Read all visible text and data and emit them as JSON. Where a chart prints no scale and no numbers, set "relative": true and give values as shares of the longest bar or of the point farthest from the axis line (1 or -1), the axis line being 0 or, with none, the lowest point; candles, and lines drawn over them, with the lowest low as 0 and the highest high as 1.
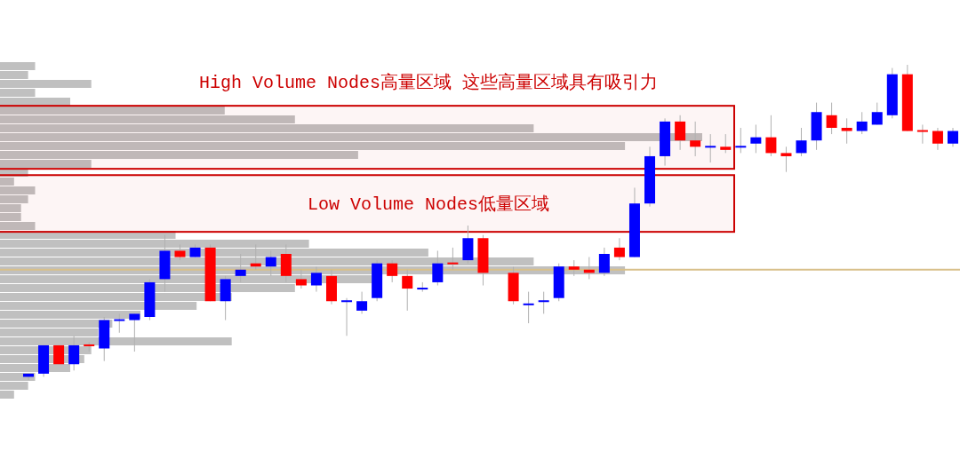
{
  "chart_data": [
    {
      "type": "bar",
      "orientation": "horizontal",
      "relative": true,
      "color": "#c0c0c0",
      "categories": [
        null,
        null,
        null,
        null,
        null,
        null,
        null,
        null,
        null,
        null,
        null,
        null,
        null,
        null,
        null,
        null,
        null,
        null,
        null,
        null,
        null,
        null,
        null,
        null,
        null,
        null,
        null,
        null,
        null,
        null,
        null,
        null,
        null,
        null,
        null,
        null,
        null,
        null
      ],
      "values": [
        0.05,
        0.04,
        0.13,
        0.05,
        0.1,
        0.32,
        0.42,
        0.76,
        1,
        0.89,
        0.51,
        0.13,
        0.04,
        0.02,
        0.05,
        0.04,
        0.03,
        0.03,
        0.05,
        0.25,
        0.44,
        0.61,
        0.76,
        0.89,
        0.53,
        0.42,
        0.33,
        0.28,
        0.2,
        0.16,
        0.14,
        0.33,
        0.13,
        0.12,
        0.1,
        0.05,
        0.04,
        0.02
      ]
    },
    {
      "type": "candlestick",
      "relative": true,
      "categories": [
        null,
        null,
        null,
        null,
        null,
        null,
        null,
        null,
        null,
        null,
        null,
        null,
        null,
        null,
        null,
        null,
        null,
        null,
        null,
        null,
        null,
        null,
        null,
        null,
        null,
        null,
        null,
        null,
        null,
        null,
        null,
        null,
        null,
        null,
        null,
        null,
        null,
        null,
        null,
        null,
        null,
        null,
        null,
        null,
        null,
        null,
        null,
        null,
        null,
        null,
        null,
        null,
        null,
        null,
        null,
        null,
        null,
        null,
        null,
        null,
        null,
        null
      ],
      "ohlc": [
        [
          0.01,
          0.02,
          0,
          0.02
        ],
        [
          0.02,
          0.11,
          0.01,
          0.11
        ],
        [
          0.11,
          0.11,
          0.05,
          0.05
        ],
        [
          0.05,
          0.14,
          0.03,
          0.11
        ],
        [
          0.11,
          0.12,
          0.09,
          0.11
        ],
        [
          0.1,
          0.2,
          0.06,
          0.19
        ],
        [
          0.19,
          0.21,
          0.15,
          0.19
        ],
        [
          0.19,
          0.21,
          0.09,
          0.21
        ],
        [
          0.2,
          0.32,
          0.19,
          0.31
        ],
        [
          0.32,
          0.46,
          0.28,
          0.41
        ],
        [
          0.41,
          0.43,
          0.38,
          0.39
        ],
        [
          0.39,
          0.43,
          0.39,
          0.42
        ],
        [
          0.42,
          0.43,
          0.25,
          0.25
        ],
        [
          0.25,
          0.33,
          0.19,
          0.32
        ],
        [
          0.33,
          0.4,
          0.31,
          0.35
        ],
        [
          0.37,
          0.43,
          0.35,
          0.36
        ],
        [
          0.36,
          0.41,
          0.33,
          0.39
        ],
        [
          0.4,
          0.43,
          0.31,
          0.33
        ],
        [
          0.32,
          0.35,
          0.29,
          0.3
        ],
        [
          0.3,
          0.36,
          0.28,
          0.34
        ],
        [
          0.33,
          0.35,
          0.24,
          0.25
        ],
        [
          0.25,
          0.26,
          0.14,
          0.25
        ],
        [
          0.22,
          0.28,
          0.21,
          0.25
        ],
        [
          0.26,
          0.38,
          0.25,
          0.37
        ],
        [
          0.37,
          0.38,
          0.31,
          0.33
        ],
        [
          0.33,
          0.35,
          0.22,
          0.29
        ],
        [
          0.29,
          0.31,
          0.28,
          0.29
        ],
        [
          0.31,
          0.41,
          0.3,
          0.37
        ],
        [
          0.37,
          0.42,
          0.35,
          0.37
        ],
        [
          0.38,
          0.49,
          0.37,
          0.45
        ],
        [
          0.45,
          0.46,
          0.3,
          0.34
        ],
        null,
        [
          0.34,
          0.36,
          0.24,
          0.25
        ],
        [
          0.24,
          0.28,
          0.18,
          0.24
        ],
        [
          0.25,
          0.28,
          0.21,
          0.25
        ],
        [
          0.26,
          0.37,
          0.25,
          0.36
        ],
        [
          0.36,
          0.38,
          0.33,
          0.35
        ],
        [
          0.35,
          0.39,
          0.32,
          0.34
        ],
        [
          0.34,
          0.42,
          0.33,
          0.4
        ],
        [
          0.42,
          0.45,
          0.38,
          0.39
        ],
        [
          0.39,
          0.61,
          0.39,
          0.56
        ],
        [
          0.56,
          0.74,
          0.55,
          0.71
        ],
        [
          0.71,
          0.83,
          0.68,
          0.82
        ],
        [
          0.82,
          0.84,
          0.73,
          0.76
        ],
        [
          0.76,
          0.82,
          0.71,
          0.74
        ],
        [
          0.74,
          0.78,
          0.69,
          0.74
        ],
        [
          0.74,
          0.78,
          0.72,
          0.73
        ],
        [
          0.74,
          0.8,
          0.72,
          0.74
        ],
        [
          0.75,
          0.81,
          0.72,
          0.77
        ],
        [
          0.77,
          0.84,
          0.71,
          0.72
        ],
        [
          0.72,
          0.74,
          0.66,
          0.71
        ],
        [
          0.72,
          0.8,
          0.71,
          0.76
        ],
        [
          0.76,
          0.88,
          0.73,
          0.85
        ],
        [
          0.84,
          0.88,
          0.78,
          0.8
        ],
        [
          0.8,
          0.83,
          0.75,
          0.79
        ],
        [
          0.79,
          0.85,
          0.78,
          0.82
        ],
        [
          0.81,
          0.88,
          0.81,
          0.85
        ],
        [
          0.84,
          0.99,
          0.83,
          0.97
        ],
        [
          0.97,
          1,
          0.79,
          0.79
        ],
        [
          0.79,
          0.81,
          0.75,
          0.79
        ],
        [
          0.79,
          0.8,
          0.73,
          0.75
        ],
        [
          0.75,
          0.8,
          0.74,
          0.79
        ]
      ],
      "colors": [
        "#0000ff",
        "#0000ff",
        "#ff0000",
        "#0000ff",
        "#ff0000",
        "#0000ff",
        "#0000ff",
        "#0000ff",
        "#0000ff",
        "#0000ff",
        "#ff0000",
        "#0000ff",
        "#ff0000",
        "#0000ff",
        "#0000ff",
        "#ff0000",
        "#0000ff",
        "#ff0000",
        "#ff0000",
        "#0000ff",
        "#ff0000",
        "#0000ff",
        "#0000ff",
        "#0000ff",
        "#ff0000",
        "#ff0000",
        "#0000ff",
        "#0000ff",
        "#ff0000",
        "#0000ff",
        "#ff0000",
        null,
        "#ff0000",
        "#0000ff",
        "#0000ff",
        "#0000ff",
        "#ff0000",
        "#ff0000",
        "#0000ff",
        "#ff0000",
        "#0000ff",
        "#0000ff",
        "#0000ff",
        "#ff0000",
        "#ff0000",
        "#0000ff",
        "#ff0000",
        "#0000ff",
        "#0000ff",
        "#ff0000",
        "#ff0000",
        "#0000ff",
        "#0000ff",
        "#ff0000",
        "#ff0000",
        "#0000ff",
        "#0000ff",
        "#0000ff",
        "#ff0000",
        "#ff0000",
        "#ff0000",
        "#0000ff"
      ],
      "bands": [
        {
          "axis": "y",
          "from": 0.67,
          "to": 0.87,
          "label": "High Volume Nodes高量区域 这些高量区域具有吸引力",
          "color": "#cc0000"
        },
        {
          "axis": "y",
          "from": 0.47,
          "to": 0.65,
          "label": "Low Volume Nodes低量区域",
          "color": "#cc0000"
        }
      ],
      "ref_lines": [
        {
          "axis": "y",
          "value": 0.35,
          "color": "#d8c08a"
        }
      ]
    }
  ]
}
